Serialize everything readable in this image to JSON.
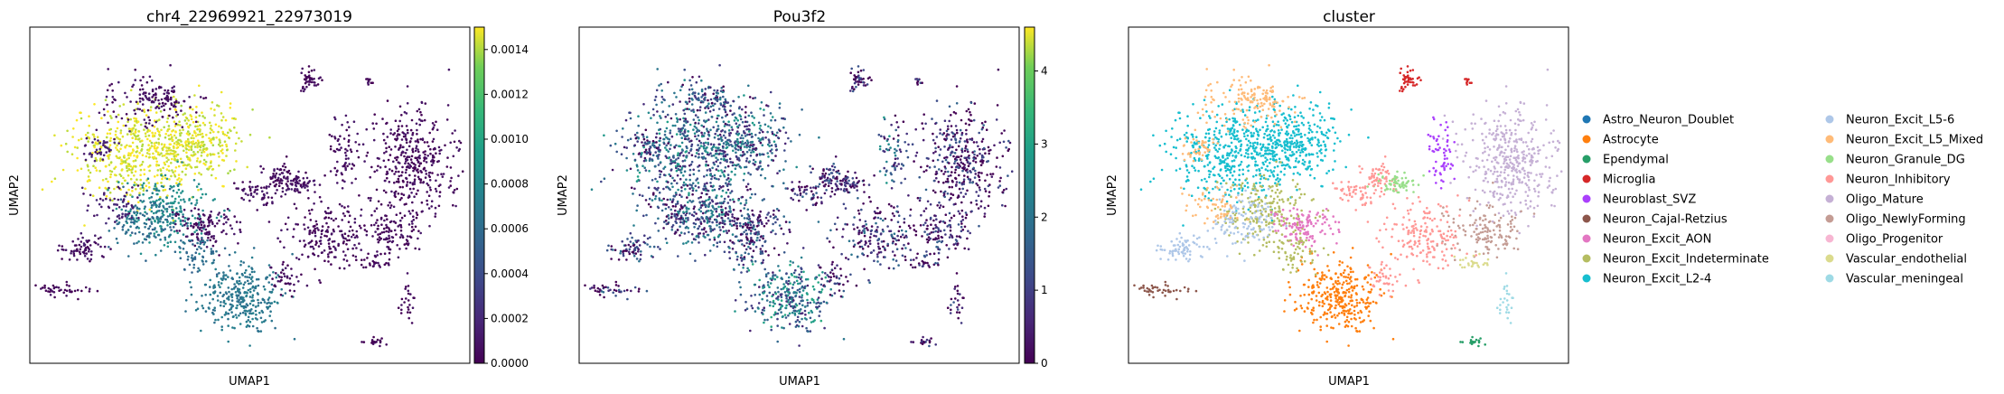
{
  "chart_data": [
    {
      "type": "scatter",
      "title": "chr4_22969921_22973019",
      "xlabel": "UMAP1",
      "ylabel": "UMAP2",
      "colormap": "viridis",
      "colorbar": {
        "range": [
          0,
          0.0015
        ],
        "ticks": [
          0.0,
          0.0002,
          0.0004,
          0.0006,
          0.0008,
          0.001,
          0.0012,
          0.0014
        ],
        "tick_labels": [
          "0.0000",
          "0.0002",
          "0.0004",
          "0.0006",
          "0.0008",
          "0.0010",
          "0.0012",
          "0.0014"
        ]
      },
      "grid": false
    },
    {
      "type": "scatter",
      "title": "Pou3f2",
      "xlabel": "UMAP1",
      "ylabel": "UMAP2",
      "colormap": "viridis",
      "colorbar": {
        "range": [
          0,
          4.6
        ],
        "ticks": [
          0,
          1,
          2,
          3,
          4
        ],
        "tick_labels": [
          "0",
          "1",
          "2",
          "3",
          "4"
        ]
      },
      "grid": false
    },
    {
      "type": "scatter",
      "title": "cluster",
      "xlabel": "UMAP1",
      "ylabel": "UMAP2",
      "grid": false,
      "legend_placement": "right",
      "legend": [
        {
          "name": "Astro_Neuron_Doublet",
          "color": "#1f77b4"
        },
        {
          "name": "Astrocyte",
          "color": "#ff7f0e"
        },
        {
          "name": "Ependymal",
          "color": "#279e68"
        },
        {
          "name": "Microglia",
          "color": "#d62728"
        },
        {
          "name": "Neuroblast_SVZ",
          "color": "#aa40fc"
        },
        {
          "name": "Neuron_Cajal-Retzius",
          "color": "#8c564b"
        },
        {
          "name": "Neuron_Excit_AON",
          "color": "#e377c2"
        },
        {
          "name": "Neuron_Excit_Indeterminate",
          "color": "#b5bd61"
        },
        {
          "name": "Neuron_Excit_L2-4",
          "color": "#17becf"
        },
        {
          "name": "Neuron_Excit_L5-6",
          "color": "#aec7e8"
        },
        {
          "name": "Neuron_Excit_L5_Mixed",
          "color": "#ffbb78"
        },
        {
          "name": "Neuron_Granule_DG",
          "color": "#98df8a"
        },
        {
          "name": "Neuron_Inhibitory",
          "color": "#ff9896"
        },
        {
          "name": "Oligo_Mature",
          "color": "#c5b0d5"
        },
        {
          "name": "Oligo_NewlyForming",
          "color": "#c49c94"
        },
        {
          "name": "Oligo_Progenitor",
          "color": "#f7b6d2"
        },
        {
          "name": "Vascular_endothelial",
          "color": "#dbdb8d"
        },
        {
          "name": "Vascular_meningeal",
          "color": "#9edae5"
        }
      ]
    }
  ]
}
